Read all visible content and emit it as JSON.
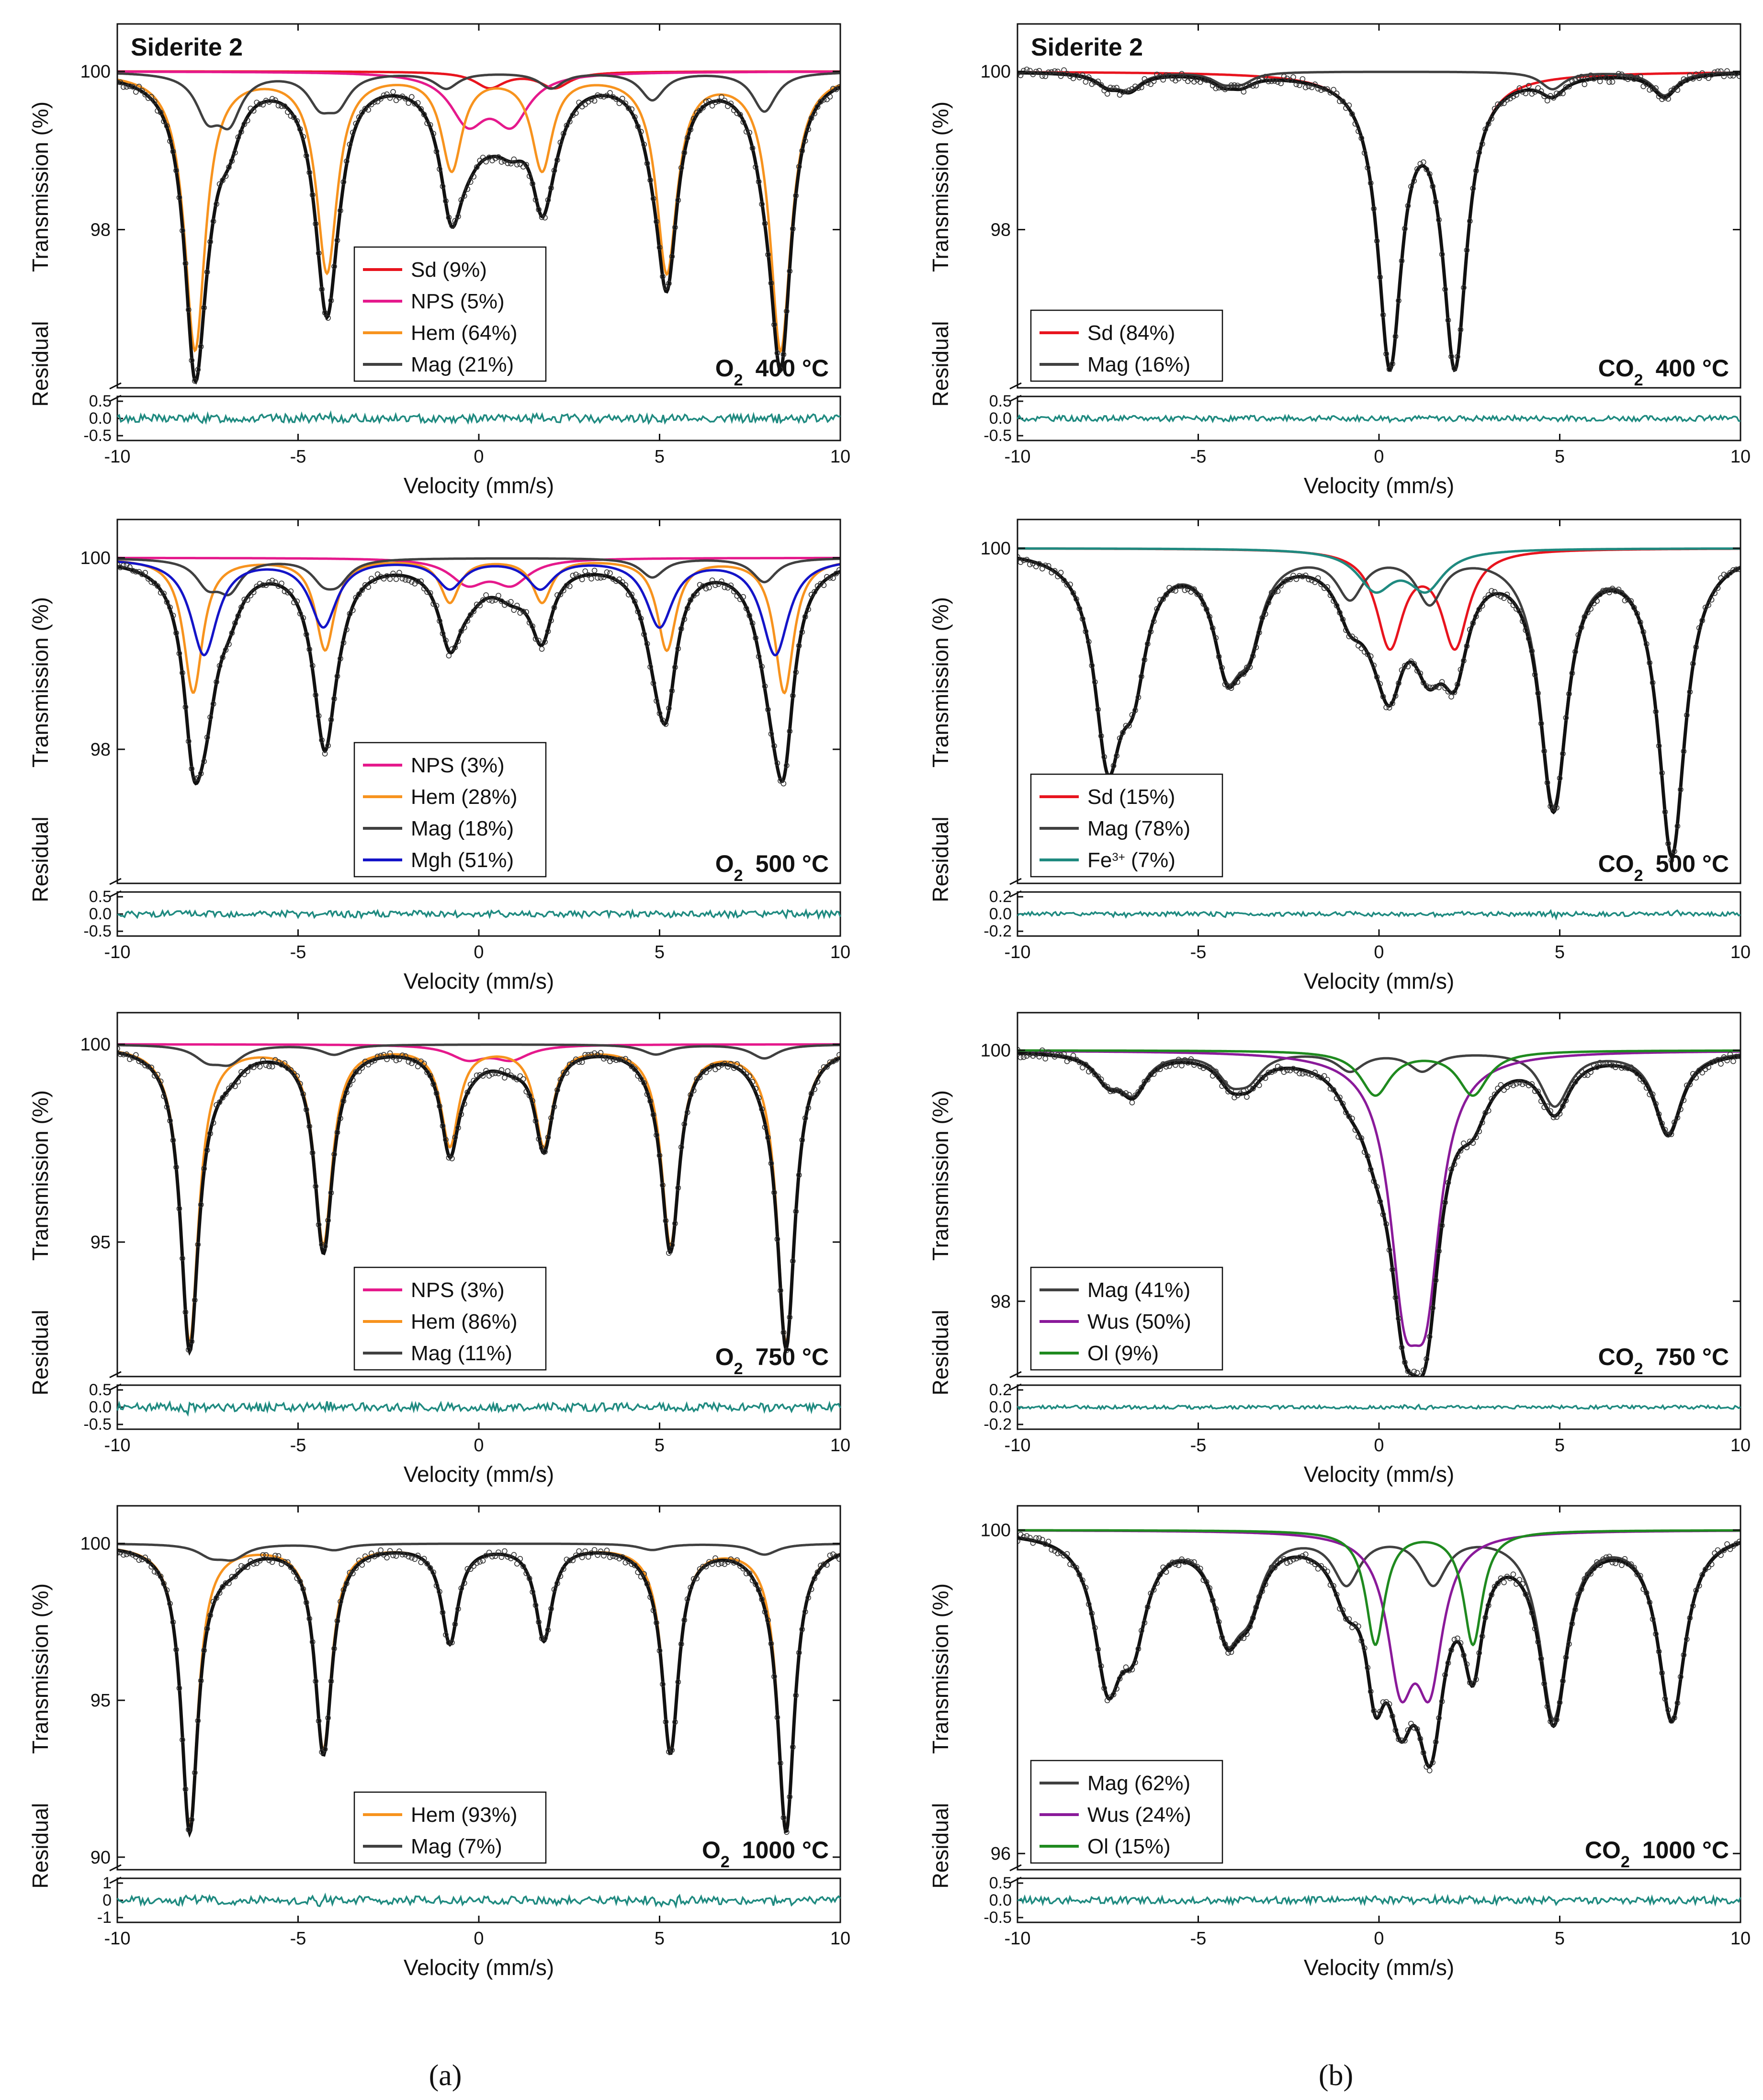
{
  "figure": {
    "sample_title": "Siderite 2",
    "panel_labels": {
      "a": "(a)",
      "b": "(b)"
    },
    "axis_labels": {
      "x": "Velocity (mm/s)",
      "y_top": "Transmission (%)",
      "y_bottom": "Residual"
    }
  },
  "colors": {
    "Sd": "#e8141e",
    "NPS": "#e5198c",
    "Hem": "#f7931e",
    "Mag": "#404040",
    "Mgh": "#1414c8",
    "Fe3": "#1f8a80",
    "Wus": "#8a1a9a",
    "Ol": "#1f8a1f",
    "residual": "#1f8a80",
    "total": "#111111"
  },
  "chart_data": [
    {
      "type": "line",
      "id": "a1",
      "condition": "O2  400 °C",
      "cond_gas": "O",
      "cond_sub": "2",
      "cond_temp": "400 °C",
      "show_title": true,
      "xlabel": "Velocity (mm/s)",
      "ylabel": "Transmission (%)",
      "ylabel2": "Residual",
      "xlim": [
        -10,
        10
      ],
      "xticks": [
        "-10",
        "-5",
        "0",
        "5",
        "10"
      ],
      "ylim": [
        96.0,
        100.6
      ],
      "yticks": [
        {
          "v": 98,
          "t": "98"
        },
        {
          "v": 100,
          "t": "100"
        }
      ],
      "residual_ticks": [
        "0.5",
        "0.0",
        "-0.5"
      ],
      "residual_amp": 0.12,
      "legend": [
        {
          "label": "Sd (9%)",
          "color": "Sd"
        },
        {
          "label": "NPS (5%)",
          "color": "NPS"
        },
        {
          "label": "Hem (64%)",
          "color": "Hem"
        },
        {
          "label": "Mag (21%)",
          "color": "Mag"
        }
      ],
      "components": [
        {
          "name": "Sd",
          "color": "Sd",
          "lines": [
            [
              0.3,
              0.2
            ],
            [
              2.1,
              0.2
            ]
          ],
          "width": 0.5
        },
        {
          "name": "NPS",
          "color": "NPS",
          "lines": [
            [
              -0.3,
              0.6
            ],
            [
              0.9,
              0.6
            ]
          ],
          "width": 0.6
        },
        {
          "name": "Hem",
          "color": "Hem",
          "lines": [
            [
              -7.85,
              3.5
            ],
            [
              -4.2,
              2.5
            ],
            [
              -0.75,
              1.2
            ],
            [
              1.75,
              1.2
            ],
            [
              5.2,
              2.5
            ],
            [
              8.35,
              3.5
            ]
          ],
          "width": 0.35
        },
        {
          "name": "Mag",
          "color": "Mag",
          "lines": [
            [
              -7.5,
              0.5
            ],
            [
              -6.9,
              0.55
            ],
            [
              -4.4,
              0.35
            ],
            [
              -3.9,
              0.35
            ],
            [
              -0.9,
              0.2
            ],
            [
              2.0,
              0.2
            ],
            [
              4.8,
              0.35
            ],
            [
              7.9,
              0.5
            ]
          ],
          "width": 0.4
        }
      ]
    },
    {
      "type": "line",
      "id": "a2",
      "condition": "O2  500 °C",
      "cond_gas": "O",
      "cond_sub": "2",
      "cond_temp": "500 °C",
      "show_title": false,
      "xlabel": "Velocity (mm/s)",
      "ylabel": "Transmission (%)",
      "ylabel2": "Residual",
      "xlim": [
        -10,
        10
      ],
      "xticks": [
        "-10",
        "-5",
        "0",
        "5",
        "10"
      ],
      "ylim": [
        96.6,
        100.4
      ],
      "yticks": [
        {
          "v": 98,
          "t": "98"
        },
        {
          "v": 100,
          "t": "100"
        }
      ],
      "residual_ticks": [
        "0.5",
        "0.0",
        "-0.5"
      ],
      "residual_amp": 0.1,
      "legend": [
        {
          "label": "NPS (3%)",
          "color": "NPS"
        },
        {
          "label": "Hem (28%)",
          "color": "Hem"
        },
        {
          "label": "Mag (18%)",
          "color": "Mag"
        },
        {
          "label": "Mgh (51%)",
          "color": "Mgh"
        }
      ],
      "components": [
        {
          "name": "NPS",
          "color": "NPS",
          "lines": [
            [
              -0.3,
              0.25
            ],
            [
              0.9,
              0.25
            ]
          ],
          "width": 0.6
        },
        {
          "name": "Hem",
          "color": "Hem",
          "lines": [
            [
              -7.9,
              1.4
            ],
            [
              -4.25,
              0.95
            ],
            [
              -0.8,
              0.45
            ],
            [
              1.75,
              0.45
            ],
            [
              5.2,
              0.95
            ],
            [
              8.45,
              1.4
            ]
          ],
          "width": 0.32
        },
        {
          "name": "Mag",
          "color": "Mag",
          "lines": [
            [
              -7.5,
              0.25
            ],
            [
              -6.9,
              0.3
            ],
            [
              -4.3,
              0.2
            ],
            [
              -3.9,
              0.2
            ],
            [
              4.8,
              0.2
            ],
            [
              7.9,
              0.25
            ]
          ],
          "width": 0.4
        },
        {
          "name": "Mgh",
          "color": "Mgh",
          "lines": [
            [
              -7.6,
              1.0
            ],
            [
              -4.3,
              0.7
            ],
            [
              -0.8,
              0.3
            ],
            [
              1.7,
              0.3
            ],
            [
              5.0,
              0.7
            ],
            [
              8.2,
              1.0
            ]
          ],
          "width": 0.45
        }
      ]
    },
    {
      "type": "line",
      "id": "a3",
      "condition": "O2  750 °C",
      "cond_gas": "O",
      "cond_sub": "2",
      "cond_temp": "750 °C",
      "show_title": false,
      "xlabel": "Velocity (mm/s)",
      "ylabel": "Transmission (%)",
      "ylabel2": "Residual",
      "xlim": [
        -10,
        10
      ],
      "xticks": [
        "-10",
        "-5",
        "0",
        "5",
        "10"
      ],
      "ylim": [
        91.6,
        100.8
      ],
      "yticks": [
        {
          "v": 95,
          "t": "95"
        },
        {
          "v": 100,
          "t": "100"
        }
      ],
      "residual_ticks": [
        "0.5",
        "0.0",
        "-0.5"
      ],
      "residual_amp": 0.12,
      "legend": [
        {
          "label": "NPS (3%)",
          "color": "NPS"
        },
        {
          "label": "Hem (86%)",
          "color": "Hem"
        },
        {
          "label": "Mag (11%)",
          "color": "Mag"
        }
      ],
      "components": [
        {
          "name": "NPS",
          "color": "NPS",
          "lines": [
            [
              -0.3,
              0.35
            ],
            [
              0.9,
              0.35
            ]
          ],
          "width": 0.6
        },
        {
          "name": "Hem",
          "color": "Hem",
          "lines": [
            [
              -8.0,
              7.5
            ],
            [
              -4.3,
              5.0
            ],
            [
              -0.8,
              2.5
            ],
            [
              1.8,
              2.5
            ],
            [
              5.3,
              5.0
            ],
            [
              8.5,
              7.5
            ]
          ],
          "width": 0.3
        },
        {
          "name": "Mag",
          "color": "Mag",
          "lines": [
            [
              -7.5,
              0.35
            ],
            [
              -6.9,
              0.4
            ],
            [
              -4.0,
              0.25
            ],
            [
              4.9,
              0.25
            ],
            [
              7.9,
              0.35
            ]
          ],
          "width": 0.45
        }
      ]
    },
    {
      "type": "line",
      "id": "a4",
      "condition": "O2  1000 °C",
      "cond_gas": "O",
      "cond_sub": "2",
      "cond_temp": "1000 °C",
      "show_title": false,
      "xlabel": "Velocity (mm/s)",
      "ylabel": "Transmission (%)",
      "ylabel2": "Residual",
      "xlim": [
        -10,
        10
      ],
      "xticks": [
        "-10",
        "-5",
        "0",
        "5",
        "10"
      ],
      "ylim": [
        89.6,
        101.2
      ],
      "yticks": [
        {
          "v": 90,
          "t": "90"
        },
        {
          "v": 95,
          "t": "95"
        },
        {
          "v": 100,
          "t": "100"
        }
      ],
      "residual_ticks": [
        "1",
        "0",
        "-1"
      ],
      "residual_amp": 0.12,
      "legend": [
        {
          "label": "Hem (93%)",
          "color": "Hem"
        },
        {
          "label": "Mag (7%)",
          "color": "Mag"
        }
      ],
      "components": [
        {
          "name": "Hem",
          "color": "Hem",
          "lines": [
            [
              -8.0,
              9.0
            ],
            [
              -4.3,
              6.5
            ],
            [
              -0.8,
              3.1
            ],
            [
              1.8,
              3.0
            ],
            [
              5.3,
              6.5
            ],
            [
              8.5,
              9.0
            ]
          ],
          "width": 0.28
        },
        {
          "name": "Mag",
          "color": "Mag",
          "lines": [
            [
              -7.4,
              0.35
            ],
            [
              -6.8,
              0.4
            ],
            [
              -4.0,
              0.2
            ],
            [
              4.8,
              0.2
            ],
            [
              7.9,
              0.35
            ]
          ],
          "width": 0.45
        }
      ]
    },
    {
      "type": "line",
      "id": "b1",
      "condition": "CO2  400 °C",
      "cond_gas": "CO",
      "cond_sub": "2",
      "cond_temp": "400 °C",
      "show_title": true,
      "xlabel": "Velocity (mm/s)",
      "ylabel": "Transmission (%)",
      "ylabel2": "Residual",
      "xlim": [
        -10,
        10
      ],
      "xticks": [
        "-10",
        "-5",
        "0",
        "5",
        "10"
      ],
      "ylim": [
        96.0,
        100.6
      ],
      "yticks": [
        {
          "v": 98,
          "t": "98"
        },
        {
          "v": 100,
          "t": "100"
        }
      ],
      "residual_ticks": [
        "0.5",
        "0.0",
        "-0.5"
      ],
      "residual_amp": 0.08,
      "legend": [
        {
          "label": "Sd (84%)",
          "color": "Sd"
        },
        {
          "label": "Mag (16%)",
          "color": "Mag"
        }
      ],
      "components": [
        {
          "name": "Sd",
          "color": "Sd",
          "lines": [
            [
              0.3,
              3.6
            ],
            [
              2.1,
              3.6
            ]
          ],
          "width": 0.4
        },
        {
          "name": "Mag",
          "color": "Mag",
          "lines": [
            [
              -7.5,
              0.15
            ],
            [
              -6.9,
              0.2
            ],
            [
              -4.3,
              0.12
            ],
            [
              -3.8,
              0.12
            ],
            [
              4.8,
              0.22
            ],
            [
              7.9,
              0.3
            ]
          ],
          "width": 0.4
        }
      ]
    },
    {
      "type": "line",
      "id": "b2",
      "condition": "CO2  500 °C",
      "cond_gas": "CO",
      "cond_sub": "2",
      "cond_temp": "500 °C",
      "show_title": false,
      "xlabel": "Velocity (mm/s)",
      "ylabel": "Transmission (%)",
      "ylabel2": "Residual",
      "xlim": [
        -10,
        10
      ],
      "xticks": [
        "-10",
        "-5",
        "0",
        "5",
        "10"
      ],
      "ylim": [
        93.0,
        100.6
      ],
      "yticks": [
        {
          "v": 100,
          "t": "100"
        }
      ],
      "residual_ticks": [
        "0.2",
        "0.0",
        "-0.2"
      ],
      "residual_amp": 0.06,
      "legend": [
        {
          "label": "Sd (15%)",
          "color": "Sd"
        },
        {
          "label": "Mag (78%)",
          "color": "Mag"
        },
        {
          "label": "Fe3+ (7%)",
          "color": "Fe3",
          "html": "Fe<tspan baseline-shift='super' font-size='24'>3+</tspan> (7%)"
        }
      ],
      "components": [
        {
          "name": "Sd",
          "color": "Sd",
          "lines": [
            [
              0.3,
              2.0
            ],
            [
              2.1,
              2.0
            ]
          ],
          "width": 0.45
        },
        {
          "name": "Mag",
          "color": "Mag",
          "lines": [
            [
              -7.5,
              4.0
            ],
            [
              -6.8,
              2.2
            ],
            [
              -4.2,
              2.1
            ],
            [
              -3.6,
              1.5
            ],
            [
              -0.8,
              0.9
            ],
            [
              1.4,
              1.0
            ],
            [
              4.8,
              3.8
            ],
            [
              8.1,
              4.0
            ],
            [
              8.1,
              2.3
            ],
            [
              4.9,
              1.5
            ]
          ],
          "width": 0.45
        },
        {
          "name": "Fe3",
          "color": "Fe3",
          "lines": [
            [
              -0.1,
              0.8
            ],
            [
              1.3,
              0.8
            ]
          ],
          "width": 0.6
        }
      ]
    },
    {
      "type": "line",
      "id": "b3",
      "condition": "CO2  750 °C",
      "cond_gas": "CO",
      "cond_sub": "2",
      "cond_temp": "750 °C",
      "show_title": false,
      "xlabel": "Velocity (mm/s)",
      "ylabel": "Transmission (%)",
      "ylabel2": "Residual",
      "xlim": [
        -10,
        10
      ],
      "xticks": [
        "-10",
        "-5",
        "0",
        "5",
        "10"
      ],
      "ylim": [
        97.4,
        100.3
      ],
      "yticks": [
        {
          "v": 98,
          "t": "98"
        },
        {
          "v": 100,
          "t": "100"
        }
      ],
      "residual_ticks": [
        "0.2",
        "0.0",
        "-0.2"
      ],
      "residual_amp": 0.05,
      "legend": [
        {
          "label": "Mag (41%)",
          "color": "Mag"
        },
        {
          "label": "Wus (50%)",
          "color": "Wus"
        },
        {
          "label": "Ol (9%)",
          "color": "Ol"
        }
      ],
      "components": [
        {
          "name": "Mag",
          "color": "Mag",
          "lines": [
            [
              -7.5,
              0.2
            ],
            [
              -6.8,
              0.3
            ],
            [
              -4.1,
              0.2
            ],
            [
              -3.6,
              0.18
            ],
            [
              -0.8,
              0.15
            ],
            [
              1.2,
              0.15
            ],
            [
              4.8,
              0.3
            ],
            [
              8.0,
              0.45
            ],
            [
              8.0,
              0.2
            ],
            [
              5.0,
              0.15
            ]
          ],
          "width": 0.45
        },
        {
          "name": "Wus",
          "color": "Wus",
          "lines": [
            [
              0.7,
              1.6
            ],
            [
              1.3,
              1.6
            ]
          ],
          "width": 0.5
        },
        {
          "name": "Ol",
          "color": "Ol",
          "lines": [
            [
              -0.1,
              0.35
            ],
            [
              2.6,
              0.35
            ]
          ],
          "width": 0.5
        }
      ]
    },
    {
      "type": "line",
      "id": "b4",
      "condition": "CO2  1000 °C",
      "cond_gas": "CO",
      "cond_sub": "2",
      "cond_temp": "1000 °C",
      "show_title": false,
      "xlabel": "Velocity (mm/s)",
      "ylabel": "Transmission (%)",
      "ylabel2": "Residual",
      "xlim": [
        -10,
        10
      ],
      "xticks": [
        "-10",
        "-5",
        "0",
        "5",
        "10"
      ],
      "ylim": [
        95.8,
        100.3
      ],
      "yticks": [
        {
          "v": 96,
          "t": "96"
        },
        {
          "v": 100,
          "t": "100"
        }
      ],
      "residual_ticks": [
        "0.5",
        "0.0",
        "-0.5"
      ],
      "residual_amp": 0.1,
      "legend": [
        {
          "label": "Mag (62%)",
          "color": "Mag"
        },
        {
          "label": "Wus (24%)",
          "color": "Wus"
        },
        {
          "label": "Ol (15%)",
          "color": "Ol"
        }
      ],
      "components": [
        {
          "name": "Mag",
          "color": "Mag",
          "lines": [
            [
              -7.5,
              1.7
            ],
            [
              -6.8,
              1.1
            ],
            [
              -4.2,
              1.1
            ],
            [
              -3.6,
              0.7
            ],
            [
              -0.9,
              0.6
            ],
            [
              1.5,
              0.6
            ],
            [
              4.8,
              1.6
            ],
            [
              8.1,
              1.5
            ],
            [
              8.1,
              0.8
            ],
            [
              4.9,
              0.7
            ]
          ],
          "width": 0.45
        },
        {
          "name": "Wus",
          "color": "Wus",
          "lines": [
            [
              0.6,
              1.7
            ],
            [
              1.4,
              1.7
            ]
          ],
          "width": 0.45
        },
        {
          "name": "Ol",
          "color": "Ol",
          "lines": [
            [
              -0.1,
              1.4
            ],
            [
              2.6,
              1.4
            ]
          ],
          "width": 0.32
        }
      ]
    }
  ]
}
